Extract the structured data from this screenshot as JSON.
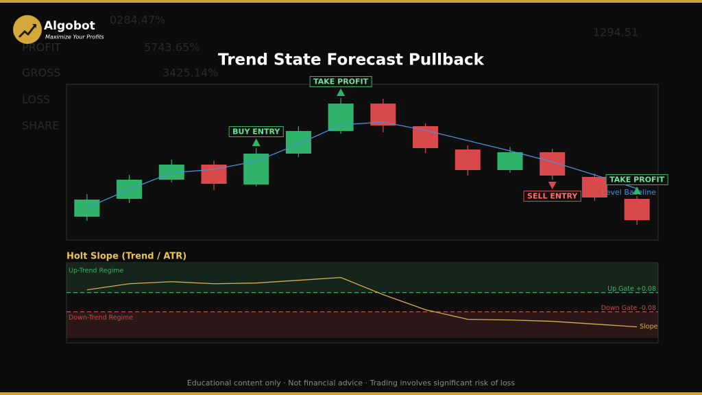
{
  "brand": {
    "name": "Algobot",
    "tagline": "Maximize Your Profits"
  },
  "background_texts": [
    "0284.47%",
    "PROFIT",
    "5743.65%",
    "GROSS",
    "3425.14%",
    "LOSS",
    "SHARE",
    "1294.51"
  ],
  "chart_data": [
    {
      "type": "candlestick",
      "title": "Trend State Forecast Pullback",
      "categories": [
        null,
        null,
        null,
        null,
        null,
        null,
        null,
        null,
        null,
        null,
        null,
        null,
        null,
        null
      ],
      "open": [
        34,
        60,
        88,
        110,
        81,
        126,
        159,
        199,
        166,
        132,
        102,
        128,
        92,
        60
      ],
      "high": [
        67,
        95,
        117,
        116,
        134,
        166,
        207,
        206,
        170,
        138,
        136,
        133,
        97,
        64
      ],
      "low": [
        28,
        54,
        84,
        73,
        78,
        121,
        155,
        157,
        127,
        94,
        98,
        88,
        57,
        22
      ],
      "close": [
        59,
        88,
        110,
        82,
        126,
        159,
        199,
        167,
        134,
        102,
        128,
        94,
        62,
        29
      ],
      "up_color": "#2fb36a",
      "down_color": "#d9494b",
      "overlay": {
        "name": "Level Baseline",
        "color": "#4a90d9",
        "values": [
          47,
          74,
          98,
          103,
          115,
          140,
          168,
          172,
          160,
          145,
          130,
          114,
          95,
          75
        ]
      },
      "annotations": [
        {
          "text": "BUY ENTRY",
          "index": 4,
          "position": "above",
          "color": "#2fb36a"
        },
        {
          "text": "TAKE PROFIT",
          "index": 6,
          "position": "above",
          "color": "#2fb36a"
        },
        {
          "text": "SELL ENTRY",
          "index": 11,
          "position": "below",
          "color": "#d9494b"
        },
        {
          "text": "TAKE PROFIT",
          "index": 13,
          "position": "above",
          "color": "#2fb36a"
        }
      ],
      "ylim": [
        0,
        227
      ]
    },
    {
      "type": "line",
      "title": "Holt Slope (Trend / ATR)",
      "categories": [
        null,
        null,
        null,
        null,
        null,
        null,
        null,
        null,
        null,
        null,
        null,
        null,
        null,
        null
      ],
      "series": [
        {
          "name": "Slope",
          "color": "#d8b04a",
          "values": [
            0.103,
            0.154,
            0.171,
            0.154,
            0.16,
            0.183,
            0.206,
            0.063,
            -0.063,
            -0.143,
            -0.149,
            -0.16,
            -0.183,
            -0.206
          ]
        }
      ],
      "thresholds": [
        {
          "value": 0.08,
          "label": "Up Gate +0.08",
          "color": "#3fae6e",
          "region": "Up-Trend Regime"
        },
        {
          "value": -0.08,
          "label": "Down Gate -0.08",
          "color": "#c94a4a",
          "region": "Down-Trend Regime"
        }
      ],
      "ylim": [
        -0.34,
        0.33
      ]
    }
  ],
  "footer": "Educational content only · Not financial advice · Trading involves significant risk of loss"
}
